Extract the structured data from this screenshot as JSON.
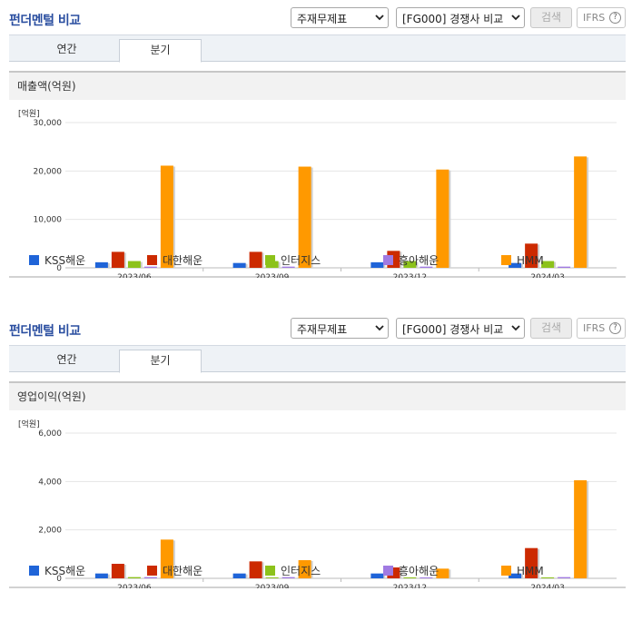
{
  "header": {
    "title": "펀더멘털 비교",
    "select_statement": "주재무제표",
    "select_compare": "[FG000] 경쟁사 비교",
    "search_label": "검색",
    "ifrs_label": "IFRS",
    "help_label": "?"
  },
  "tabs": {
    "annual": "연간",
    "quarter": "분기"
  },
  "colors": {
    "KSS해운": "#1f64d8",
    "대한해운": "#cc2a00",
    "인터지스": "#8cc21a",
    "흥아해운": "#a07ae2",
    "HMM": "#ff9900"
  },
  "charts": [
    {
      "heading": "매출액(억원)",
      "unit": "[억원]",
      "ticks": [
        "30,000",
        "20,000",
        "10,000",
        "0"
      ]
    },
    {
      "heading": "영업이익(억원)",
      "unit": "[억원]",
      "ticks": [
        "6,000",
        "4,000",
        "2,000",
        "0"
      ]
    }
  ],
  "chart_data": [
    {
      "type": "bar",
      "title": "매출액(억원)",
      "ylabel": "[억원]",
      "ylim": [
        0,
        30000
      ],
      "categories": [
        "2023/06",
        "2023/09",
        "2023/12",
        "2024/03"
      ],
      "series": [
        {
          "name": "KSS해운",
          "values": [
            1150,
            1000,
            1150,
            1000
          ]
        },
        {
          "name": "대한해운",
          "values": [
            3300,
            3300,
            3500,
            5000
          ]
        },
        {
          "name": "인터지스",
          "values": [
            1400,
            1400,
            1400,
            1400
          ]
        },
        {
          "name": "흥아해운",
          "values": [
            250,
            250,
            250,
            250
          ]
        },
        {
          "name": "HMM",
          "values": [
            21100,
            20900,
            20300,
            23000
          ]
        }
      ],
      "grid": true,
      "legend": "bottom"
    },
    {
      "type": "bar",
      "title": "영업이익(억원)",
      "ylabel": "[억원]",
      "ylim": [
        0,
        6000
      ],
      "categories": [
        "2023/06",
        "2023/09",
        "2023/12",
        "2024/03"
      ],
      "series": [
        {
          "name": "KSS해운",
          "values": [
            200,
            200,
            200,
            200
          ]
        },
        {
          "name": "대한해운",
          "values": [
            600,
            700,
            450,
            1250
          ]
        },
        {
          "name": "인터지스",
          "values": [
            50,
            20,
            20,
            20
          ]
        },
        {
          "name": "흥아해운",
          "values": [
            50,
            50,
            20,
            50
          ]
        },
        {
          "name": "HMM",
          "values": [
            1600,
            750,
            400,
            4050
          ]
        }
      ],
      "grid": true,
      "legend": "bottom"
    }
  ]
}
